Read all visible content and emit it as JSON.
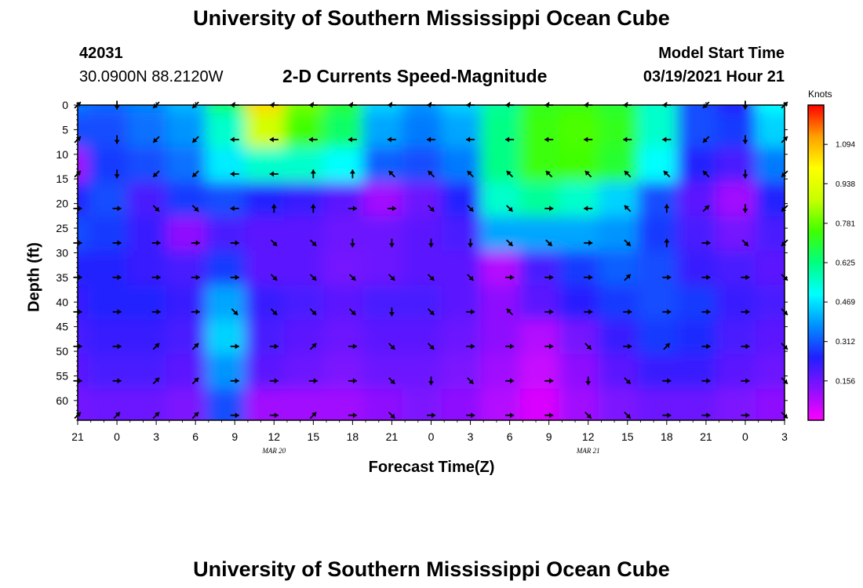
{
  "header": {
    "title_top": "University of Southern Mississippi Ocean Cube",
    "title_bottom": "University of Southern Mississippi Ocean Cube",
    "station_id": "42031",
    "coordinates": "30.0900N 88.2120W",
    "plot_title": "2-D Currents Speed-Magnitude",
    "model_start_label": "Model Start Time",
    "model_start_value": "03/19/2021 Hour 21"
  },
  "colors": {
    "colormap": [
      "#ff00ff",
      "#8a10ff",
      "#2020ff",
      "#0090ff",
      "#00ffff",
      "#00ff80",
      "#40ff00",
      "#c8ff00",
      "#ffff00",
      "#ffa000",
      "#ff0000"
    ],
    "arrow": "#000000",
    "frame": "#000000"
  },
  "chart_data": {
    "type": "heatmap",
    "xlabel": "Forecast Time(Z)",
    "ylabel": "Depth (ft)",
    "x_tick_labels": [
      "21",
      "0",
      "3",
      "6",
      "9",
      "12",
      "15",
      "18",
      "21",
      "0",
      "3",
      "6",
      "9",
      "12",
      "15",
      "18",
      "21",
      "0",
      "3"
    ],
    "x_date_labels": [
      "MAR 20",
      "MAR 21"
    ],
    "y_tick_labels": [
      "0",
      "5",
      "10",
      "15",
      "20",
      "25",
      "30",
      "35",
      "40",
      "45",
      "50",
      "55",
      "60"
    ],
    "ylim": [
      0,
      64
    ],
    "y_reversed": true,
    "colorbar": {
      "unit": "Knots",
      "ticks": [
        "1.094",
        "0.938",
        "0.781",
        "0.625",
        "0.469",
        "0.312",
        "0.156"
      ],
      "range": [
        0,
        1.25
      ]
    },
    "speed_grid_depths_ft": [
      0,
      7,
      14,
      21,
      28,
      35,
      42,
      49,
      56,
      63
    ],
    "speed_grid_hours": [
      0,
      3,
      6,
      9,
      12,
      15,
      18,
      21,
      24,
      27,
      30,
      33,
      36,
      39,
      42,
      45,
      48,
      51,
      54
    ],
    "speed_knots": [
      [
        0.35,
        0.33,
        0.36,
        0.42,
        0.65,
        1.05,
        0.8,
        0.7,
        0.45,
        0.38,
        0.45,
        0.6,
        0.72,
        0.74,
        0.7,
        0.55,
        0.3,
        0.25,
        0.5
      ],
      [
        0.3,
        0.3,
        0.34,
        0.38,
        0.55,
        0.9,
        0.75,
        0.65,
        0.4,
        0.35,
        0.4,
        0.62,
        0.74,
        0.76,
        0.72,
        0.55,
        0.3,
        0.28,
        0.45
      ],
      [
        0.1,
        0.28,
        0.3,
        0.34,
        0.48,
        0.55,
        0.55,
        0.5,
        0.32,
        0.3,
        0.35,
        0.62,
        0.74,
        0.75,
        0.7,
        0.5,
        0.25,
        0.2,
        0.35
      ],
      [
        0.25,
        0.3,
        0.2,
        0.28,
        0.3,
        0.25,
        0.22,
        0.18,
        0.1,
        0.16,
        0.25,
        0.55,
        0.6,
        0.55,
        0.45,
        0.3,
        0.18,
        0.1,
        0.25
      ],
      [
        0.3,
        0.28,
        0.22,
        0.12,
        0.2,
        0.18,
        0.18,
        0.16,
        0.16,
        0.18,
        0.2,
        0.4,
        0.4,
        0.4,
        0.38,
        0.28,
        0.2,
        0.15,
        0.2
      ],
      [
        0.25,
        0.25,
        0.22,
        0.2,
        0.28,
        0.18,
        0.18,
        0.15,
        0.16,
        0.18,
        0.18,
        0.08,
        0.2,
        0.28,
        0.32,
        0.3,
        0.22,
        0.2,
        0.18
      ],
      [
        0.22,
        0.25,
        0.25,
        0.22,
        0.4,
        0.22,
        0.2,
        0.18,
        0.2,
        0.2,
        0.18,
        0.12,
        0.18,
        0.24,
        0.28,
        0.3,
        0.28,
        0.22,
        0.2
      ],
      [
        0.2,
        0.22,
        0.22,
        0.2,
        0.45,
        0.2,
        0.18,
        0.16,
        0.18,
        0.18,
        0.16,
        0.12,
        0.08,
        0.15,
        0.22,
        0.28,
        0.26,
        0.2,
        0.18
      ],
      [
        0.18,
        0.2,
        0.2,
        0.18,
        0.38,
        0.18,
        0.16,
        0.14,
        0.16,
        0.16,
        0.14,
        0.1,
        0.06,
        0.12,
        0.18,
        0.22,
        0.22,
        0.18,
        0.16
      ],
      [
        0.15,
        0.16,
        0.16,
        0.14,
        0.3,
        0.1,
        0.1,
        0.1,
        0.12,
        0.14,
        0.12,
        0.08,
        0.04,
        0.1,
        0.14,
        0.16,
        0.16,
        0.14,
        0.12
      ]
    ],
    "arrow_directions_deg": [
      [
        45,
        180,
        225,
        225,
        270,
        270,
        270,
        270,
        270,
        270,
        270,
        270,
        270,
        270,
        270,
        270,
        225,
        180,
        45
      ],
      [
        45,
        180,
        225,
        225,
        270,
        270,
        270,
        270,
        270,
        270,
        270,
        270,
        270,
        270,
        270,
        270,
        225,
        180,
        45
      ],
      [
        45,
        180,
        225,
        225,
        270,
        270,
        0,
        0,
        315,
        315,
        315,
        315,
        315,
        315,
        315,
        315,
        315,
        180,
        225
      ],
      [
        90,
        90,
        135,
        135,
        270,
        0,
        0,
        90,
        90,
        135,
        135,
        135,
        90,
        270,
        315,
        0,
        45,
        180,
        225
      ],
      [
        90,
        90,
        90,
        90,
        90,
        135,
        135,
        180,
        180,
        180,
        180,
        135,
        135,
        90,
        135,
        0,
        90,
        135,
        225
      ],
      [
        90,
        90,
        90,
        90,
        90,
        135,
        135,
        135,
        135,
        135,
        135,
        90,
        90,
        90,
        45,
        90,
        90,
        90,
        135
      ],
      [
        90,
        90,
        90,
        90,
        135,
        135,
        135,
        135,
        180,
        135,
        90,
        315,
        90,
        90,
        90,
        90,
        90,
        90,
        135
      ],
      [
        90,
        90,
        45,
        45,
        90,
        90,
        45,
        90,
        135,
        135,
        90,
        90,
        90,
        135,
        90,
        45,
        90,
        90,
        135
      ],
      [
        90,
        90,
        45,
        45,
        90,
        90,
        90,
        90,
        135,
        180,
        135,
        90,
        90,
        180,
        135,
        90,
        90,
        90,
        135
      ],
      [
        45,
        45,
        45,
        45,
        90,
        90,
        45,
        90,
        135,
        90,
        90,
        90,
        90,
        135,
        135,
        90,
        90,
        90,
        135
      ]
    ]
  }
}
